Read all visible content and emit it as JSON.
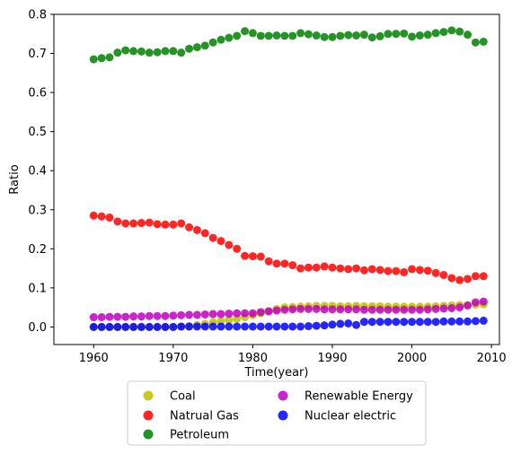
{
  "chart_data": {
    "type": "scatter",
    "title": "",
    "xlabel": "Time(year)",
    "ylabel": "Ratio",
    "xlim": [
      1955,
      2011
    ],
    "ylim": [
      -0.045,
      0.8
    ],
    "xticks": [
      1960,
      1970,
      1980,
      1990,
      2000,
      2010
    ],
    "yticks": [
      0.0,
      0.1,
      0.2,
      0.3,
      0.4,
      0.5,
      0.6,
      0.7,
      0.8
    ],
    "xtick_labels": [
      "1960",
      "1970",
      "1980",
      "1990",
      "2000",
      "2010"
    ],
    "ytick_labels": [
      "0.0",
      "0.1",
      "0.2",
      "0.3",
      "0.4",
      "0.5",
      "0.6",
      "0.7",
      "0.8"
    ],
    "grid": false,
    "legend_position": "below plot, two columns",
    "x": [
      1960,
      1961,
      1962,
      1963,
      1964,
      1965,
      1966,
      1967,
      1968,
      1969,
      1970,
      1971,
      1972,
      1973,
      1974,
      1975,
      1976,
      1977,
      1978,
      1979,
      1980,
      1981,
      1982,
      1983,
      1984,
      1985,
      1986,
      1987,
      1988,
      1989,
      1990,
      1991,
      1992,
      1993,
      1994,
      1995,
      1996,
      1997,
      1998,
      1999,
      2000,
      2001,
      2002,
      2003,
      2004,
      2005,
      2006,
      2007,
      2008,
      2009
    ],
    "series": [
      {
        "name": "Coal",
        "color": "#bfbf00",
        "values": [
          0.0,
          0.0,
          0.0,
          0.0,
          0.0,
          0.0,
          0.0,
          0.0,
          0.0,
          0.0,
          0.0,
          0.001,
          0.002,
          0.005,
          0.008,
          0.012,
          0.015,
          0.018,
          0.021,
          0.025,
          0.03,
          0.035,
          0.04,
          0.046,
          0.05,
          0.051,
          0.052,
          0.053,
          0.054,
          0.054,
          0.054,
          0.053,
          0.053,
          0.054,
          0.053,
          0.053,
          0.053,
          0.052,
          0.052,
          0.052,
          0.052,
          0.052,
          0.052,
          0.053,
          0.054,
          0.055,
          0.056,
          0.056,
          0.057,
          0.058
        ]
      },
      {
        "name": "Natrual Gas",
        "color": "#ff0000",
        "values": [
          0.285,
          0.283,
          0.28,
          0.27,
          0.265,
          0.265,
          0.266,
          0.267,
          0.263,
          0.262,
          0.262,
          0.265,
          0.255,
          0.248,
          0.24,
          0.228,
          0.22,
          0.21,
          0.2,
          0.182,
          0.181,
          0.18,
          0.168,
          0.162,
          0.162,
          0.158,
          0.15,
          0.152,
          0.152,
          0.155,
          0.152,
          0.15,
          0.148,
          0.15,
          0.145,
          0.148,
          0.146,
          0.143,
          0.143,
          0.14,
          0.148,
          0.146,
          0.144,
          0.138,
          0.133,
          0.125,
          0.12,
          0.123,
          0.13,
          0.13
        ]
      },
      {
        "name": "Petroleum",
        "color": "#008000",
        "values": [
          0.685,
          0.688,
          0.69,
          0.702,
          0.708,
          0.706,
          0.705,
          0.702,
          0.703,
          0.706,
          0.706,
          0.702,
          0.712,
          0.716,
          0.72,
          0.728,
          0.735,
          0.74,
          0.745,
          0.757,
          0.752,
          0.745,
          0.745,
          0.746,
          0.745,
          0.745,
          0.752,
          0.749,
          0.746,
          0.742,
          0.742,
          0.745,
          0.747,
          0.746,
          0.748,
          0.741,
          0.744,
          0.75,
          0.75,
          0.751,
          0.743,
          0.746,
          0.748,
          0.752,
          0.755,
          0.759,
          0.756,
          0.748,
          0.728,
          0.73
        ]
      },
      {
        "name": "Renewable Energy",
        "color": "#bf00bf",
        "values": [
          0.025,
          0.025,
          0.026,
          0.026,
          0.026,
          0.027,
          0.027,
          0.028,
          0.028,
          0.028,
          0.029,
          0.03,
          0.031,
          0.031,
          0.032,
          0.033,
          0.033,
          0.034,
          0.035,
          0.035,
          0.035,
          0.038,
          0.04,
          0.042,
          0.044,
          0.045,
          0.046,
          0.046,
          0.046,
          0.045,
          0.045,
          0.045,
          0.045,
          0.045,
          0.044,
          0.044,
          0.044,
          0.044,
          0.044,
          0.044,
          0.044,
          0.044,
          0.045,
          0.046,
          0.047,
          0.048,
          0.05,
          0.055,
          0.063,
          0.065
        ]
      },
      {
        "name": "Nuclear electric",
        "color": "#0000ff",
        "values": [
          0.0,
          0.0,
          0.0,
          0.0,
          0.0,
          0.0,
          0.0,
          0.0,
          0.0,
          0.0,
          0.0,
          0.001,
          0.001,
          0.001,
          0.001,
          0.001,
          0.001,
          0.001,
          0.001,
          0.001,
          0.001,
          0.001,
          0.001,
          0.001,
          0.001,
          0.001,
          0.001,
          0.002,
          0.003,
          0.004,
          0.006,
          0.008,
          0.009,
          0.005,
          0.013,
          0.013,
          0.013,
          0.013,
          0.013,
          0.013,
          0.013,
          0.013,
          0.013,
          0.013,
          0.014,
          0.014,
          0.014,
          0.014,
          0.015,
          0.016
        ]
      }
    ]
  }
}
